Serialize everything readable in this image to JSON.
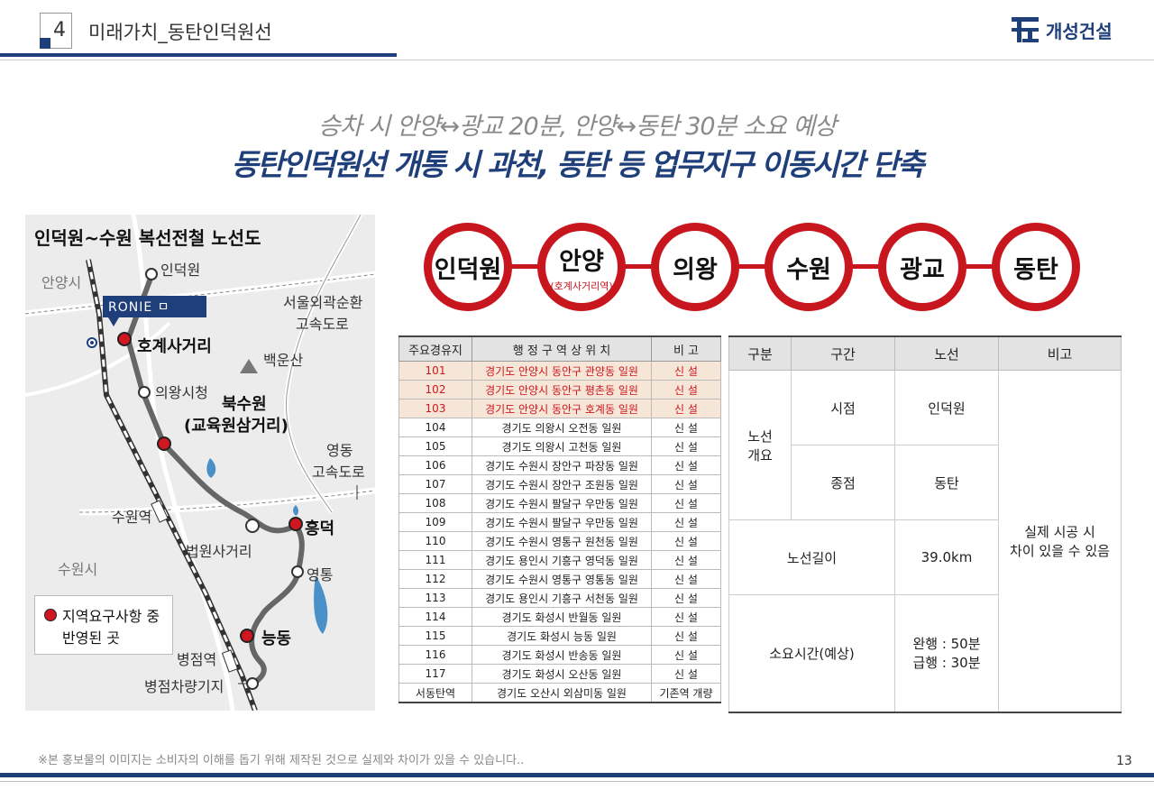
{
  "header": {
    "section_number": "4",
    "section_title": "미래가치_동탄인덕원선",
    "logo_text": "개성건설"
  },
  "headline": {
    "line1": "승차 시 안양↔광교 20분, 안양↔동탄 30분 소요 예상",
    "line2": "동탄인덕원선 개통 시 과천, 동탄 등 업무지구 이동시간 단축"
  },
  "map": {
    "title": "인덕원~수원 복선전철 노선도",
    "ronie": "RONIE ㅁ",
    "labels": {
      "induckwon": "인덕원",
      "anyangsi": "안양시",
      "hogye": "호계사거리",
      "baekunsan": "백운산",
      "uiwang_city_hall": "의왕시청",
      "bukseowon_1": "북수원",
      "bukseowon_2": "(교육원삼거리)",
      "yeongdong_exp_1": "영동",
      "yeongdong_exp_2": "고속도로",
      "seoul_ring_1": "서울외곽순환",
      "seoul_ring_2": "고속도로",
      "suwon_station": "수원역",
      "heungdeok": "흥덕",
      "beobwon": "법원사거리",
      "suwonsi": "수원시",
      "yeongtong": "영통",
      "neungdong": "능동",
      "byeongjeom": "병점역",
      "byeongjeom_depot": "병점차량기지"
    },
    "legend_line1": "지역요구사항 중",
    "legend_line2": "반영된 곳"
  },
  "stations": [
    {
      "name": "인덕원",
      "sub": ""
    },
    {
      "name": "안양",
      "sub": "(호계사거리역)"
    },
    {
      "name": "의왕",
      "sub": ""
    },
    {
      "name": "수원",
      "sub": ""
    },
    {
      "name": "광교",
      "sub": ""
    },
    {
      "name": "동탄",
      "sub": ""
    }
  ],
  "table1": {
    "headers": [
      "주요경유지",
      "행 정 구 역 상 위 치",
      "비 고"
    ],
    "rows": [
      {
        "id": "101",
        "loc": "경기도 안양시 동안구 관양동 일원",
        "note": "신 설",
        "hl": true
      },
      {
        "id": "102",
        "loc": "경기도 안양시 동안구 평촌동 일원",
        "note": "신 설",
        "hl": true
      },
      {
        "id": "103",
        "loc": "경기도 안양시 동안구 호계동 일원",
        "note": "신 설",
        "hl": true
      },
      {
        "id": "104",
        "loc": "경기도 의왕시 오전동 일원",
        "note": "신 설",
        "hl": false
      },
      {
        "id": "105",
        "loc": "경기도 의왕시 고천동 일원",
        "note": "신 설",
        "hl": false
      },
      {
        "id": "106",
        "loc": "경기도 수원시 장안구 파장동 일원",
        "note": "신 설",
        "hl": false
      },
      {
        "id": "107",
        "loc": "경기도 수원시 장안구 조원동 일원",
        "note": "신 설",
        "hl": false
      },
      {
        "id": "108",
        "loc": "경기도 수원시 팔달구 우만동 일원",
        "note": "신 설",
        "hl": false
      },
      {
        "id": "109",
        "loc": "경기도 수원시 팔달구 우만동 일원",
        "note": "신 설",
        "hl": false
      },
      {
        "id": "110",
        "loc": "경기도 수원시 영통구 원천동 일원",
        "note": "신 설",
        "hl": false
      },
      {
        "id": "111",
        "loc": "경기도 용인시 기흥구 영덕동 일원",
        "note": "신 설",
        "hl": false
      },
      {
        "id": "112",
        "loc": "경기도 수원시 영통구 영통동 일원",
        "note": "신 설",
        "hl": false
      },
      {
        "id": "113",
        "loc": "경기도 용인시 기흥구 서천동 일원",
        "note": "신 설",
        "hl": false
      },
      {
        "id": "114",
        "loc": "경기도 화성시 반월동 일원",
        "note": "신 설",
        "hl": false
      },
      {
        "id": "115",
        "loc": "경기도 화성시 능동 일원",
        "note": "신 설",
        "hl": false
      },
      {
        "id": "116",
        "loc": "경기도 화성시 반송동 일원",
        "note": "신 설",
        "hl": false
      },
      {
        "id": "117",
        "loc": "경기도 화성시 오산동 일원",
        "note": "신 설",
        "hl": false
      },
      {
        "id": "서동탄역",
        "loc": "경기도 오산시 외삼미동 일원",
        "note": "기존역 개량",
        "hl": false
      }
    ]
  },
  "table2": {
    "headers": [
      "구분",
      "구간",
      "노선",
      "비고"
    ],
    "overview": "노선\n개요",
    "start_label": "시점",
    "start_value": "인덕원",
    "end_label": "종점",
    "end_value": "동탄",
    "length_label": "노선길이",
    "length_value": "39.0km",
    "time_label": "소요시간(예상)",
    "time_local": "완행 : 50분",
    "time_express": "급행 : 30분",
    "note_line1": "실제 시공 시",
    "note_line2": "차이 있을 수 있음"
  },
  "footer": {
    "note": "※본 홍보물의 이미지는 소비자의 이해를 돕기 위해 제작된 것으로 실제와 차이가 있을 수 있습니다..",
    "page": "13"
  },
  "colors": {
    "navy": "#1f3f7a",
    "red": "#c8161e"
  }
}
